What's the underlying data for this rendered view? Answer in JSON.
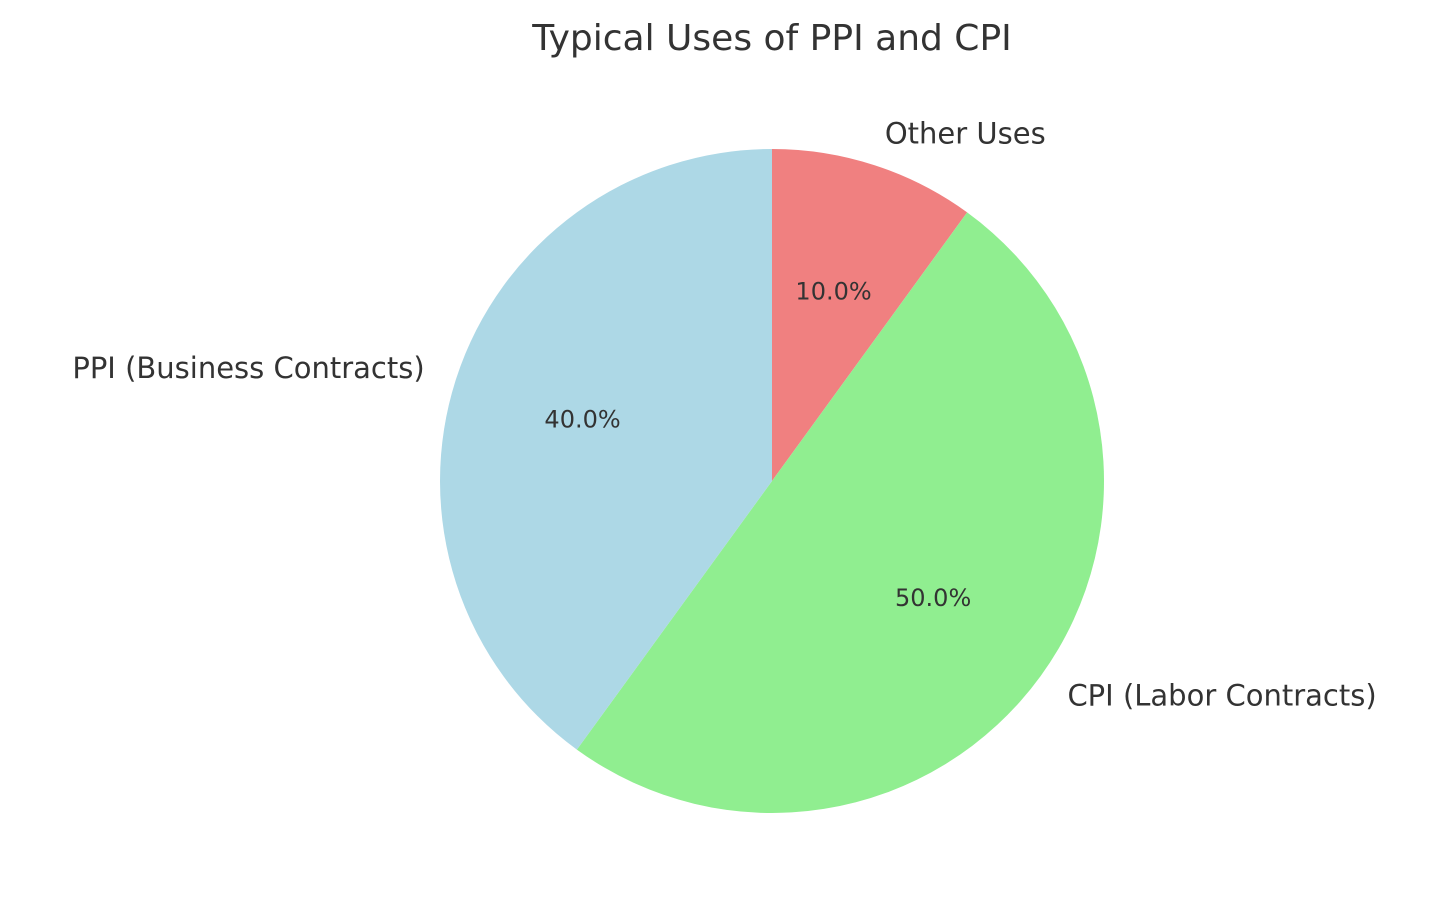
{
  "chart_data": {
    "type": "pie",
    "title": "Typical Uses of PPI and CPI",
    "start_angle_deg": 90,
    "direction": "clockwise",
    "slices": [
      {
        "label": "Other Uses",
        "value": 10.0,
        "pct_label": "10.0%",
        "color": "#f08080"
      },
      {
        "label": "CPI (Labor Contracts)",
        "value": 50.0,
        "pct_label": "50.0%",
        "color": "#90ee90"
      },
      {
        "label": "PPI (Business Contracts)",
        "value": 40.0,
        "pct_label": "40.0%",
        "color": "#add8e6"
      }
    ]
  }
}
